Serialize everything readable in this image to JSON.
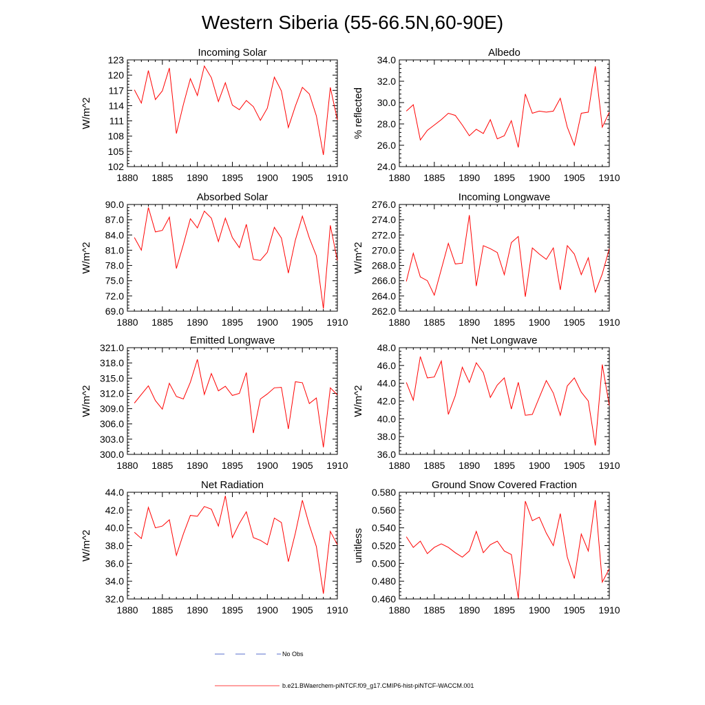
{
  "figure": {
    "title": "Western Siberia (55-66.5N,60-90E)"
  },
  "legend": {
    "entries": [
      {
        "label": "No Obs",
        "color": "#1f3fbf",
        "style": "dashed"
      },
      {
        "label": "b.e21.BWaerchem-piNTCF.f09_g17.CMIP6-hist-piNTCF-WACCM.001",
        "color": "#ff0000",
        "style": "solid"
      }
    ]
  },
  "chart_data": [
    {
      "type": "line",
      "title": "Incoming Solar",
      "ylabel": "W/m^2",
      "xlim": [
        1880,
        1910
      ],
      "ylim": [
        102,
        123
      ],
      "xticks": [
        "1880",
        "1885",
        "1890",
        "1895",
        "1900",
        "1905",
        "1910"
      ],
      "yticks": [
        "102",
        "105",
        "108",
        "111",
        "114",
        "117",
        "120",
        "123"
      ],
      "series": [
        {
          "color": "#ff0000",
          "x": [
            1881,
            1882,
            1883,
            1884,
            1885,
            1886,
            1887,
            1888,
            1889,
            1890,
            1891,
            1892,
            1893,
            1894,
            1895,
            1896,
            1897,
            1898,
            1899,
            1900,
            1901,
            1902,
            1903,
            1904,
            1905,
            1906,
            1907,
            1908,
            1909,
            1910
          ],
          "y": [
            117.1,
            114.5,
            120.9,
            115.2,
            116.9,
            121.4,
            108.5,
            114.2,
            119.3,
            116.0,
            121.8,
            119.5,
            114.8,
            118.5,
            114.1,
            113.2,
            115.0,
            113.8,
            111.1,
            113.5,
            119.6,
            116.9,
            109.7,
            113.9,
            117.6,
            116.3,
            112.0,
            104.3,
            117.6,
            111.2
          ]
        }
      ]
    },
    {
      "type": "line",
      "title": "Albedo",
      "ylabel": "% reflected",
      "xlim": [
        1880,
        1910
      ],
      "ylim": [
        24,
        34
      ],
      "xticks": [
        "1880",
        "1885",
        "1890",
        "1895",
        "1900",
        "1905",
        "1910"
      ],
      "yticks": [
        "24.0",
        "26.0",
        "28.0",
        "30.0",
        "32.0",
        "34.0"
      ],
      "series": [
        {
          "color": "#ff0000",
          "x": [
            1881,
            1882,
            1883,
            1884,
            1885,
            1886,
            1887,
            1888,
            1889,
            1890,
            1891,
            1892,
            1893,
            1894,
            1895,
            1896,
            1897,
            1898,
            1899,
            1900,
            1901,
            1902,
            1903,
            1904,
            1905,
            1906,
            1907,
            1908,
            1909,
            1910
          ],
          "y": [
            29.2,
            29.8,
            26.5,
            27.4,
            27.9,
            28.4,
            29.0,
            28.8,
            27.9,
            26.9,
            27.5,
            27.1,
            28.4,
            26.6,
            26.9,
            28.3,
            25.8,
            30.8,
            29.0,
            29.2,
            29.1,
            29.2,
            30.4,
            27.7,
            26.0,
            29.0,
            29.1,
            33.4,
            27.7,
            29.1
          ]
        }
      ]
    },
    {
      "type": "line",
      "title": "Absorbed Solar",
      "ylabel": "W/m^2",
      "xlim": [
        1880,
        1910
      ],
      "ylim": [
        69,
        90
      ],
      "xticks": [
        "1880",
        "1885",
        "1890",
        "1895",
        "1900",
        "1905",
        "1910"
      ],
      "yticks": [
        "69.0",
        "72.0",
        "75.0",
        "78.0",
        "81.0",
        "84.0",
        "87.0",
        "90.0"
      ],
      "series": [
        {
          "color": "#ff0000",
          "x": [
            1881,
            1882,
            1883,
            1884,
            1885,
            1886,
            1887,
            1888,
            1889,
            1890,
            1891,
            1892,
            1893,
            1894,
            1895,
            1896,
            1897,
            1898,
            1899,
            1900,
            1901,
            1902,
            1903,
            1904,
            1905,
            1906,
            1907,
            1908,
            1909,
            1910
          ],
          "y": [
            83.5,
            81.0,
            89.4,
            84.6,
            84.9,
            87.5,
            77.4,
            82.1,
            87.2,
            85.4,
            88.7,
            87.3,
            82.7,
            87.3,
            83.5,
            81.5,
            86.1,
            79.2,
            79.0,
            80.6,
            85.5,
            83.4,
            76.5,
            83.0,
            87.7,
            83.4,
            79.9,
            69.5,
            85.9,
            79.0
          ]
        }
      ]
    },
    {
      "type": "line",
      "title": "Incoming Longwave",
      "ylabel": "W/m^2",
      "xlim": [
        1880,
        1910
      ],
      "ylim": [
        262,
        276
      ],
      "xticks": [
        "1880",
        "1885",
        "1890",
        "1895",
        "1900",
        "1905",
        "1910"
      ],
      "yticks": [
        "262.0",
        "264.0",
        "266.0",
        "268.0",
        "270.0",
        "272.0",
        "274.0",
        "276.0"
      ],
      "series": [
        {
          "color": "#ff0000",
          "x": [
            1881,
            1882,
            1883,
            1884,
            1885,
            1886,
            1887,
            1888,
            1889,
            1890,
            1891,
            1892,
            1893,
            1894,
            1895,
            1896,
            1897,
            1898,
            1899,
            1900,
            1901,
            1902,
            1903,
            1904,
            1905,
            1906,
            1907,
            1908,
            1909,
            1910
          ],
          "y": [
            265.9,
            269.6,
            266.5,
            266.0,
            264.1,
            267.5,
            270.9,
            268.2,
            268.3,
            274.6,
            265.3,
            270.6,
            270.2,
            269.7,
            266.8,
            271.0,
            271.8,
            263.9,
            270.3,
            269.5,
            268.8,
            270.3,
            264.8,
            270.6,
            269.5,
            266.8,
            269.0,
            264.5,
            266.9,
            270.2
          ]
        }
      ]
    },
    {
      "type": "line",
      "title": "Emitted Longwave",
      "ylabel": "W/m^2",
      "xlim": [
        1880,
        1910
      ],
      "ylim": [
        300,
        321
      ],
      "xticks": [
        "1880",
        "1885",
        "1890",
        "1895",
        "1900",
        "1905",
        "1910"
      ],
      "yticks": [
        "300.0",
        "303.0",
        "306.0",
        "309.0",
        "312.0",
        "315.0",
        "318.0",
        "321.0"
      ],
      "series": [
        {
          "color": "#ff0000",
          "x": [
            1881,
            1882,
            1883,
            1884,
            1885,
            1886,
            1887,
            1888,
            1889,
            1890,
            1891,
            1892,
            1893,
            1894,
            1895,
            1896,
            1897,
            1898,
            1899,
            1900,
            1901,
            1902,
            1903,
            1904,
            1905,
            1906,
            1907,
            1908,
            1909,
            1910
          ],
          "y": [
            310.1,
            311.8,
            313.5,
            310.6,
            308.9,
            314.0,
            311.4,
            310.9,
            314.2,
            318.7,
            311.8,
            315.9,
            312.5,
            313.4,
            311.6,
            312.0,
            316.1,
            304.2,
            310.9,
            311.9,
            313.1,
            313.2,
            305.0,
            314.3,
            314.1,
            310.0,
            311.1,
            301.4,
            313.1,
            311.7
          ]
        }
      ]
    },
    {
      "type": "line",
      "title": "Net Longwave",
      "ylabel": "W/m^2",
      "xlim": [
        1880,
        1910
      ],
      "ylim": [
        36,
        48
      ],
      "xticks": [
        "1880",
        "1885",
        "1890",
        "1895",
        "1900",
        "1905",
        "1910"
      ],
      "yticks": [
        "36.0",
        "38.0",
        "40.0",
        "42.0",
        "44.0",
        "46.0",
        "48.0"
      ],
      "series": [
        {
          "color": "#ff0000",
          "x": [
            1881,
            1882,
            1883,
            1884,
            1885,
            1886,
            1887,
            1888,
            1889,
            1890,
            1891,
            1892,
            1893,
            1894,
            1895,
            1896,
            1897,
            1898,
            1899,
            1900,
            1901,
            1902,
            1903,
            1904,
            1905,
            1906,
            1907,
            1908,
            1909,
            1910
          ],
          "y": [
            44.1,
            42.1,
            47.0,
            44.6,
            44.7,
            46.5,
            40.5,
            42.6,
            45.8,
            44.1,
            46.3,
            45.2,
            42.4,
            43.8,
            44.6,
            41.1,
            44.1,
            40.4,
            40.5,
            42.4,
            44.3,
            42.9,
            40.4,
            43.7,
            44.6,
            43.0,
            42.0,
            37.0,
            46.1,
            41.5
          ]
        }
      ]
    },
    {
      "type": "line",
      "title": "Net Radiation",
      "ylabel": "W/m^2",
      "xlim": [
        1880,
        1910
      ],
      "ylim": [
        32,
        44
      ],
      "xticks": [
        "1880",
        "1885",
        "1890",
        "1895",
        "1900",
        "1905",
        "1910"
      ],
      "yticks": [
        "32.0",
        "34.0",
        "36.0",
        "38.0",
        "40.0",
        "42.0",
        "44.0"
      ],
      "series": [
        {
          "color": "#ff0000",
          "x": [
            1881,
            1882,
            1883,
            1884,
            1885,
            1886,
            1887,
            1888,
            1889,
            1890,
            1891,
            1892,
            1893,
            1894,
            1895,
            1896,
            1897,
            1898,
            1899,
            1900,
            1901,
            1902,
            1903,
            1904,
            1905,
            1906,
            1907,
            1908,
            1909,
            1910
          ],
          "y": [
            39.5,
            38.8,
            42.3,
            40.0,
            40.2,
            40.9,
            36.9,
            39.3,
            41.4,
            41.3,
            42.4,
            42.1,
            40.2,
            43.6,
            38.9,
            40.5,
            41.8,
            38.9,
            38.6,
            38.1,
            41.1,
            40.6,
            36.2,
            39.4,
            43.1,
            40.3,
            37.9,
            32.6,
            39.6,
            38.1
          ]
        }
      ]
    },
    {
      "type": "line",
      "title": "Ground Snow Covered Fraction",
      "ylabel": "unitless",
      "xlim": [
        1880,
        1910
      ],
      "ylim": [
        0.46,
        0.58
      ],
      "xticks": [
        "1880",
        "1885",
        "1890",
        "1895",
        "1900",
        "1905",
        "1910"
      ],
      "yticks": [
        "0.460",
        "0.480",
        "0.500",
        "0.520",
        "0.540",
        "0.560",
        "0.580"
      ],
      "series": [
        {
          "color": "#ff0000",
          "x": [
            1881,
            1882,
            1883,
            1884,
            1885,
            1886,
            1887,
            1888,
            1889,
            1890,
            1891,
            1892,
            1893,
            1894,
            1895,
            1896,
            1897,
            1898,
            1899,
            1900,
            1901,
            1902,
            1903,
            1904,
            1905,
            1906,
            1907,
            1908,
            1909,
            1910
          ],
          "y": [
            0.53,
            0.518,
            0.525,
            0.511,
            0.518,
            0.522,
            0.518,
            0.512,
            0.507,
            0.514,
            0.536,
            0.512,
            0.521,
            0.525,
            0.514,
            0.51,
            0.461,
            0.57,
            0.548,
            0.552,
            0.534,
            0.52,
            0.556,
            0.507,
            0.483,
            0.533,
            0.514,
            0.571,
            0.479,
            0.494
          ]
        }
      ]
    }
  ]
}
